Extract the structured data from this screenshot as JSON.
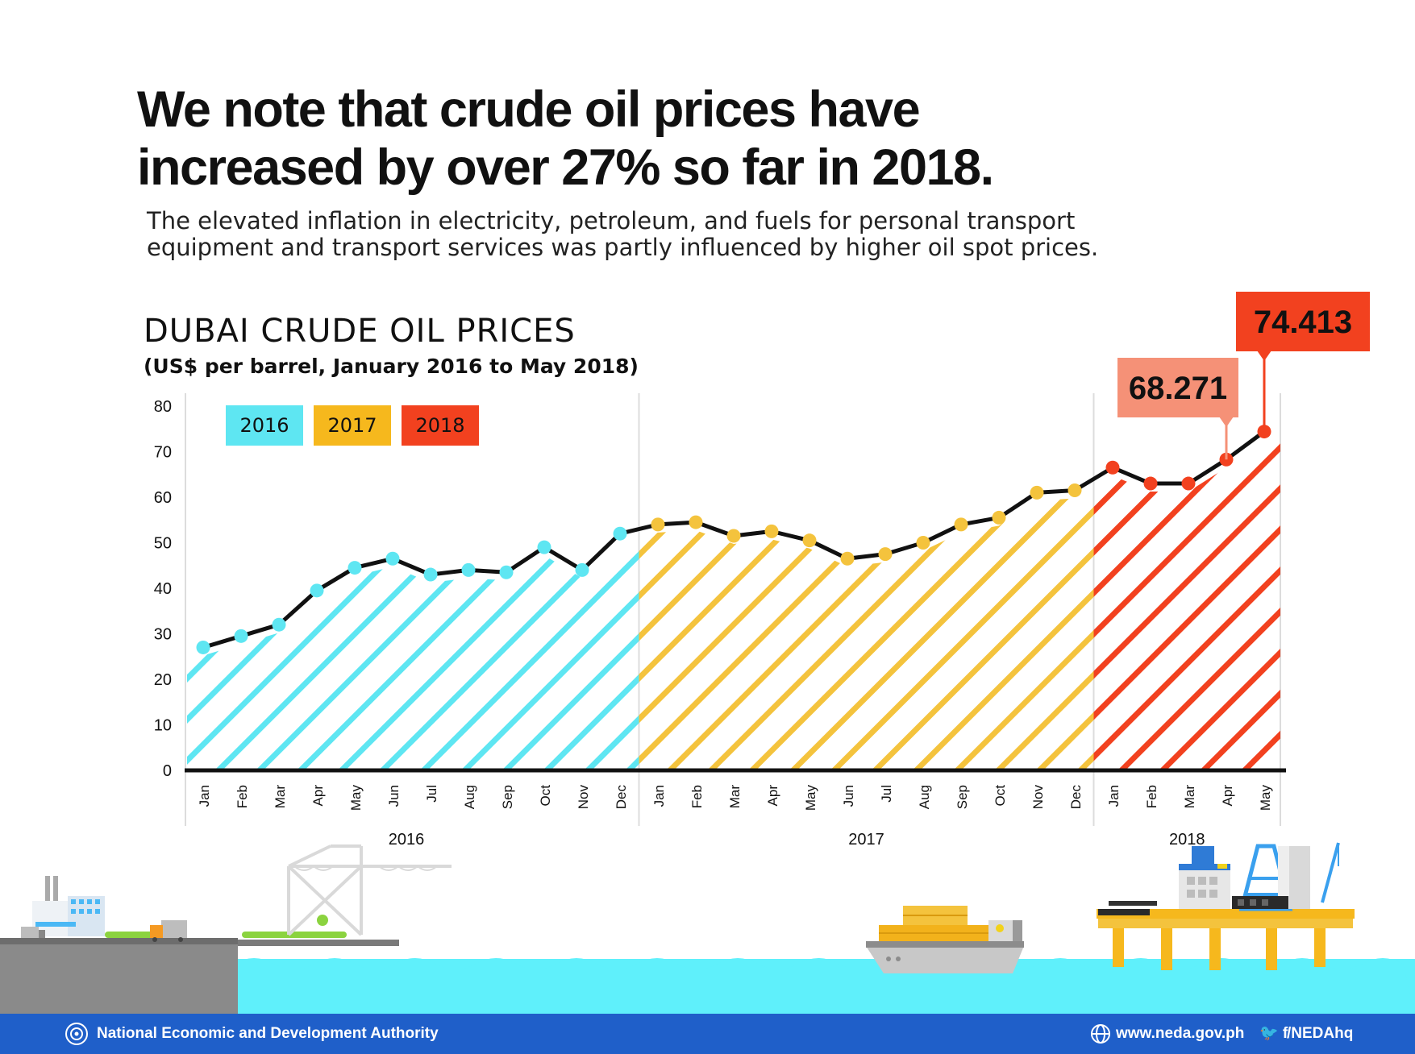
{
  "headline": {
    "line1": "We note that crude oil prices have",
    "line2": "increased by over 27% so far in 2018."
  },
  "subtext": {
    "line1": "The elevated inflation in electricity, petroleum, and fuels for personal transport",
    "line2": "equipment and transport services was partly influenced by higher oil spot prices."
  },
  "chart_data": {
    "type": "line",
    "title": "DUBAI CRUDE OIL PRICES",
    "subtitle": "(US$ per barrel, January 2016 to May 2018)",
    "ylim": [
      0,
      80
    ],
    "yticks": [
      0,
      10,
      20,
      30,
      40,
      50,
      60,
      70,
      80
    ],
    "grid": false,
    "legend_position": "top-left",
    "years": [
      {
        "label": "2016",
        "color": "#5ee6f2",
        "legend_color": "#5ee6f2",
        "months": [
          "Jan",
          "Feb",
          "Mar",
          "Apr",
          "May",
          "Jun",
          "Jul",
          "Aug",
          "Sep",
          "Oct",
          "Nov",
          "Dec"
        ],
        "values": [
          27.0,
          29.5,
          32.0,
          39.5,
          44.5,
          46.5,
          43.0,
          44.0,
          43.5,
          49.0,
          44.0,
          52.0
        ]
      },
      {
        "label": "2017",
        "color": "#f4c33d",
        "legend_color": "#f6b81d",
        "months": [
          "Jan",
          "Feb",
          "Mar",
          "Apr",
          "May",
          "Jun",
          "Jul",
          "Aug",
          "Sep",
          "Oct",
          "Nov",
          "Dec"
        ],
        "values": [
          54.0,
          54.5,
          51.5,
          52.5,
          50.5,
          46.5,
          47.5,
          50.0,
          54.0,
          55.5,
          61.0,
          61.5
        ]
      },
      {
        "label": "2018",
        "color": "#f2411f",
        "legend_color": "#f2411f",
        "months": [
          "Jan",
          "Feb",
          "Mar",
          "Apr",
          "May"
        ],
        "values": [
          66.5,
          63.0,
          63.0,
          68.271,
          74.413
        ]
      }
    ],
    "callouts": [
      {
        "label": "68.271",
        "year_index": 2,
        "month_index": 3,
        "color": "#f59177"
      },
      {
        "label": "74.413",
        "year_index": 2,
        "month_index": 4,
        "color": "#f2411f"
      }
    ]
  },
  "footer": {
    "org": "National Economic and Development Authority",
    "website": "www.neda.gov.ph",
    "social": "/NEDAhq",
    "social_icons": "🐦 f"
  }
}
